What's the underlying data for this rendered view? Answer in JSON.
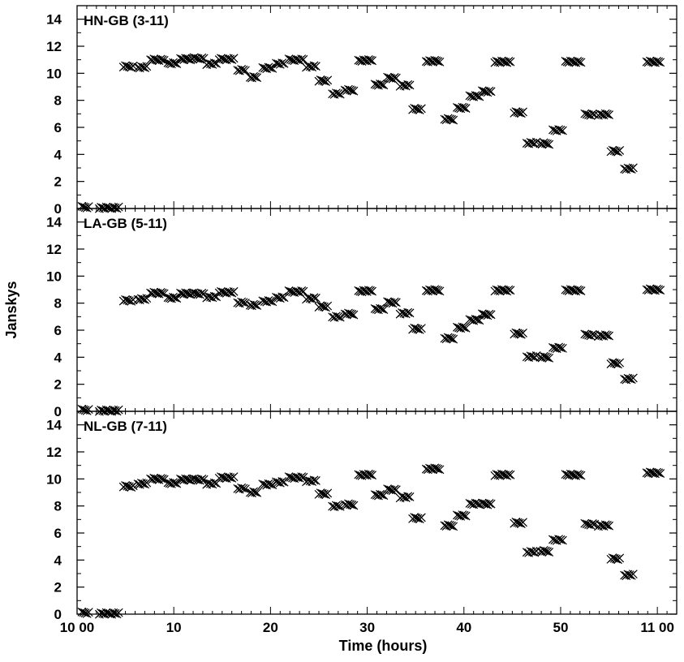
{
  "chart_data": {
    "type": "scatter",
    "ylabel": "Janskys",
    "xlabel": "Time (hours)",
    "xlim": [
      0,
      62
    ],
    "x_tick_labels": [
      "10 00",
      "10",
      "20",
      "30",
      "40",
      "50",
      "11 00"
    ],
    "x_tick_values": [
      0,
      10,
      20,
      30,
      40,
      50,
      60
    ],
    "y_tick_labels": [
      "0",
      "2",
      "4",
      "6",
      "8",
      "10",
      "12",
      "14"
    ],
    "y_tick_values": [
      0,
      2,
      4,
      6,
      8,
      10,
      12,
      14
    ],
    "ylim": [
      0,
      15
    ],
    "marker": "cross",
    "marker_color": "#000000",
    "panels": [
      {
        "title": "HN-GB (3-11)",
        "segments": [
          {
            "x0": 0.5,
            "x1": 1.2,
            "y": 0.1
          },
          {
            "x0": 2.3,
            "x1": 4.3,
            "y": 0.05
          },
          {
            "x0": 4.8,
            "x1": 5.8,
            "y": 10.5
          },
          {
            "x0": 6.3,
            "x1": 7.2,
            "y": 10.45
          },
          {
            "x0": 7.6,
            "x1": 9.0,
            "y": 11.0
          },
          {
            "x0": 9.4,
            "x1": 10.3,
            "y": 10.75
          },
          {
            "x0": 10.7,
            "x1": 11.9,
            "y": 11.05
          },
          {
            "x0": 12.1,
            "x1": 13.1,
            "y": 11.1
          },
          {
            "x0": 13.4,
            "x1": 14.4,
            "y": 10.7
          },
          {
            "x0": 14.7,
            "x1": 16.2,
            "y": 11.05
          },
          {
            "x0": 16.6,
            "x1": 17.4,
            "y": 10.25
          },
          {
            "x0": 17.9,
            "x1": 18.6,
            "y": 9.7
          },
          {
            "x0": 19.2,
            "x1": 20.2,
            "y": 10.4
          },
          {
            "x0": 20.6,
            "x1": 21.4,
            "y": 10.7
          },
          {
            "x0": 21.9,
            "x1": 23.4,
            "y": 11.0
          },
          {
            "x0": 23.7,
            "x1": 24.7,
            "y": 10.5
          },
          {
            "x0": 25.0,
            "x1": 25.9,
            "y": 9.45
          },
          {
            "x0": 26.4,
            "x1": 27.2,
            "y": 8.5
          },
          {
            "x0": 27.7,
            "x1": 28.6,
            "y": 8.75
          },
          {
            "x0": 29.1,
            "x1": 30.5,
            "y": 10.95
          },
          {
            "x0": 30.8,
            "x1": 31.7,
            "y": 9.15
          },
          {
            "x0": 32.1,
            "x1": 33.0,
            "y": 9.65
          },
          {
            "x0": 33.4,
            "x1": 34.4,
            "y": 9.1
          },
          {
            "x0": 34.7,
            "x1": 35.6,
            "y": 7.35
          },
          {
            "x0": 36.1,
            "x1": 37.5,
            "y": 10.9
          },
          {
            "x0": 38.0,
            "x1": 38.9,
            "y": 6.6
          },
          {
            "x0": 39.3,
            "x1": 40.2,
            "y": 7.45
          },
          {
            "x0": 40.6,
            "x1": 41.6,
            "y": 8.3
          },
          {
            "x0": 41.9,
            "x1": 42.8,
            "y": 8.65
          },
          {
            "x0": 43.2,
            "x1": 44.8,
            "y": 10.85
          },
          {
            "x0": 45.2,
            "x1": 46.1,
            "y": 7.1
          },
          {
            "x0": 46.5,
            "x1": 47.5,
            "y": 4.85
          },
          {
            "x0": 47.9,
            "x1": 48.8,
            "y": 4.8
          },
          {
            "x0": 49.2,
            "x1": 50.2,
            "y": 5.8
          },
          {
            "x0": 50.5,
            "x1": 52.1,
            "y": 10.85
          },
          {
            "x0": 52.5,
            "x1": 53.5,
            "y": 6.95
          },
          {
            "x0": 53.9,
            "x1": 55.0,
            "y": 6.95
          },
          {
            "x0": 55.2,
            "x1": 56.1,
            "y": 4.25
          },
          {
            "x0": 56.6,
            "x1": 57.5,
            "y": 2.95
          },
          {
            "x0": 58.9,
            "x1": 60.3,
            "y": 10.85
          }
        ]
      },
      {
        "title": "LA-GB (5-11)",
        "segments": [
          {
            "x0": 0.5,
            "x1": 1.2,
            "y": 0.1
          },
          {
            "x0": 2.3,
            "x1": 4.3,
            "y": 0.05
          },
          {
            "x0": 4.8,
            "x1": 5.8,
            "y": 8.2
          },
          {
            "x0": 6.3,
            "x1": 7.2,
            "y": 8.3
          },
          {
            "x0": 7.6,
            "x1": 9.0,
            "y": 8.75
          },
          {
            "x0": 9.4,
            "x1": 10.3,
            "y": 8.4
          },
          {
            "x0": 10.7,
            "x1": 11.9,
            "y": 8.7
          },
          {
            "x0": 12.1,
            "x1": 13.1,
            "y": 8.7
          },
          {
            "x0": 13.4,
            "x1": 14.4,
            "y": 8.45
          },
          {
            "x0": 14.7,
            "x1": 16.2,
            "y": 8.8
          },
          {
            "x0": 16.6,
            "x1": 17.4,
            "y": 8.05
          },
          {
            "x0": 17.9,
            "x1": 18.6,
            "y": 7.85
          },
          {
            "x0": 19.2,
            "x1": 20.2,
            "y": 8.15
          },
          {
            "x0": 20.6,
            "x1": 21.4,
            "y": 8.4
          },
          {
            "x0": 21.9,
            "x1": 23.4,
            "y": 8.85
          },
          {
            "x0": 23.7,
            "x1": 24.7,
            "y": 8.35
          },
          {
            "x0": 25.0,
            "x1": 25.9,
            "y": 7.75
          },
          {
            "x0": 26.4,
            "x1": 27.2,
            "y": 7.0
          },
          {
            "x0": 27.7,
            "x1": 28.6,
            "y": 7.2
          },
          {
            "x0": 29.1,
            "x1": 30.5,
            "y": 8.9
          },
          {
            "x0": 30.8,
            "x1": 31.7,
            "y": 7.55
          },
          {
            "x0": 32.1,
            "x1": 33.0,
            "y": 8.05
          },
          {
            "x0": 33.4,
            "x1": 34.4,
            "y": 7.25
          },
          {
            "x0": 34.7,
            "x1": 35.6,
            "y": 6.1
          },
          {
            "x0": 36.1,
            "x1": 37.5,
            "y": 8.95
          },
          {
            "x0": 38.0,
            "x1": 38.9,
            "y": 5.4
          },
          {
            "x0": 39.3,
            "x1": 40.2,
            "y": 6.2
          },
          {
            "x0": 40.6,
            "x1": 41.6,
            "y": 6.75
          },
          {
            "x0": 41.9,
            "x1": 42.8,
            "y": 7.15
          },
          {
            "x0": 43.2,
            "x1": 44.8,
            "y": 8.95
          },
          {
            "x0": 45.2,
            "x1": 46.1,
            "y": 5.75
          },
          {
            "x0": 46.5,
            "x1": 47.5,
            "y": 4.05
          },
          {
            "x0": 47.9,
            "x1": 48.8,
            "y": 4.0
          },
          {
            "x0": 49.2,
            "x1": 50.2,
            "y": 4.7
          },
          {
            "x0": 50.5,
            "x1": 52.1,
            "y": 8.95
          },
          {
            "x0": 52.5,
            "x1": 53.5,
            "y": 5.65
          },
          {
            "x0": 53.9,
            "x1": 55.0,
            "y": 5.6
          },
          {
            "x0": 55.2,
            "x1": 56.1,
            "y": 3.55
          },
          {
            "x0": 56.6,
            "x1": 57.5,
            "y": 2.4
          },
          {
            "x0": 58.9,
            "x1": 60.3,
            "y": 9.0
          }
        ]
      },
      {
        "title": "NL-GB (7-11)",
        "segments": [
          {
            "x0": 0.5,
            "x1": 1.2,
            "y": 0.1
          },
          {
            "x0": 2.3,
            "x1": 4.3,
            "y": 0.05
          },
          {
            "x0": 4.8,
            "x1": 5.8,
            "y": 9.45
          },
          {
            "x0": 6.3,
            "x1": 7.2,
            "y": 9.65
          },
          {
            "x0": 7.6,
            "x1": 9.0,
            "y": 10.0
          },
          {
            "x0": 9.4,
            "x1": 10.3,
            "y": 9.7
          },
          {
            "x0": 10.7,
            "x1": 11.9,
            "y": 9.95
          },
          {
            "x0": 12.1,
            "x1": 13.1,
            "y": 9.95
          },
          {
            "x0": 13.4,
            "x1": 14.4,
            "y": 9.65
          },
          {
            "x0": 14.7,
            "x1": 16.2,
            "y": 10.1
          },
          {
            "x0": 16.6,
            "x1": 17.4,
            "y": 9.3
          },
          {
            "x0": 17.9,
            "x1": 18.6,
            "y": 9.0
          },
          {
            "x0": 19.2,
            "x1": 20.2,
            "y": 9.6
          },
          {
            "x0": 20.6,
            "x1": 21.4,
            "y": 9.75
          },
          {
            "x0": 21.9,
            "x1": 23.4,
            "y": 10.1
          },
          {
            "x0": 23.7,
            "x1": 24.7,
            "y": 9.85
          },
          {
            "x0": 25.0,
            "x1": 25.9,
            "y": 8.9
          },
          {
            "x0": 26.4,
            "x1": 27.2,
            "y": 8.0
          },
          {
            "x0": 27.7,
            "x1": 28.6,
            "y": 8.1
          },
          {
            "x0": 29.1,
            "x1": 30.5,
            "y": 10.3
          },
          {
            "x0": 30.8,
            "x1": 31.7,
            "y": 8.8
          },
          {
            "x0": 32.1,
            "x1": 33.0,
            "y": 9.2
          },
          {
            "x0": 33.4,
            "x1": 34.4,
            "y": 8.65
          },
          {
            "x0": 34.7,
            "x1": 35.6,
            "y": 7.1
          },
          {
            "x0": 36.1,
            "x1": 37.5,
            "y": 10.75
          },
          {
            "x0": 38.0,
            "x1": 38.9,
            "y": 6.55
          },
          {
            "x0": 39.3,
            "x1": 40.2,
            "y": 7.3
          },
          {
            "x0": 40.6,
            "x1": 41.6,
            "y": 8.15
          },
          {
            "x0": 41.9,
            "x1": 42.8,
            "y": 8.15
          },
          {
            "x0": 43.2,
            "x1": 44.8,
            "y": 10.3
          },
          {
            "x0": 45.2,
            "x1": 46.1,
            "y": 6.75
          },
          {
            "x0": 46.5,
            "x1": 47.5,
            "y": 4.6
          },
          {
            "x0": 47.9,
            "x1": 48.8,
            "y": 4.65
          },
          {
            "x0": 49.2,
            "x1": 50.2,
            "y": 5.5
          },
          {
            "x0": 50.5,
            "x1": 52.1,
            "y": 10.3
          },
          {
            "x0": 52.5,
            "x1": 53.5,
            "y": 6.65
          },
          {
            "x0": 53.9,
            "x1": 55.0,
            "y": 6.55
          },
          {
            "x0": 55.2,
            "x1": 56.1,
            "y": 4.1
          },
          {
            "x0": 56.6,
            "x1": 57.5,
            "y": 2.9
          },
          {
            "x0": 58.9,
            "x1": 60.3,
            "y": 10.45
          }
        ]
      }
    ]
  }
}
